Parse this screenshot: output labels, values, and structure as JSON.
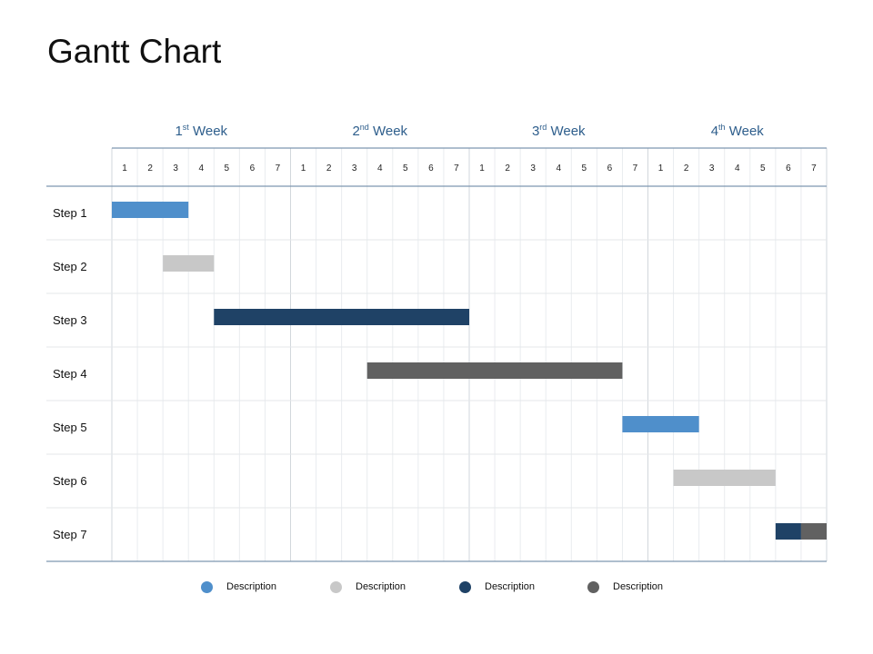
{
  "title": "Gantt Chart",
  "chart_data": {
    "type": "gantt",
    "weeks": [
      {
        "num": "1",
        "suffix": "st",
        "word": " Week"
      },
      {
        "num": "2",
        "suffix": "nd",
        "word": " Week"
      },
      {
        "num": "3",
        "suffix": "rd",
        "word": " Week"
      },
      {
        "num": "4",
        "suffix": "th",
        "word": " Week"
      }
    ],
    "days": [
      "1",
      "2",
      "3",
      "4",
      "5",
      "6",
      "7"
    ],
    "steps": [
      {
        "label": "Step 1",
        "bars": [
          {
            "start": 1,
            "end": 3,
            "color": "#4F8FCB"
          }
        ]
      },
      {
        "label": "Step 2",
        "bars": [
          {
            "start": 3,
            "end": 4,
            "color": "#C8C8C8"
          }
        ]
      },
      {
        "label": "Step 3",
        "bars": [
          {
            "start": 5,
            "end": 14,
            "color": "#1F4266"
          }
        ]
      },
      {
        "label": "Step 4",
        "bars": [
          {
            "start": 11,
            "end": 20,
            "color": "#616161"
          }
        ]
      },
      {
        "label": "Step 5",
        "bars": [
          {
            "start": 21,
            "end": 23,
            "color": "#4F8FCB"
          }
        ]
      },
      {
        "label": "Step 6",
        "bars": [
          {
            "start": 23,
            "end": 26,
            "color": "#C8C8C8"
          }
        ]
      },
      {
        "label": "Step 7",
        "bars": [
          {
            "start": 27,
            "end": 27,
            "color": "#1F4266"
          },
          {
            "start": 28,
            "end": 28,
            "color": "#616161"
          }
        ]
      }
    ],
    "legend": [
      {
        "label": "Description",
        "color": "#4F8FCB"
      },
      {
        "label": "Description",
        "color": "#C8C8C8"
      },
      {
        "label": "Description",
        "color": "#1F4266"
      },
      {
        "label": "Description",
        "color": "#616161"
      }
    ],
    "legend_position": "bottom"
  }
}
